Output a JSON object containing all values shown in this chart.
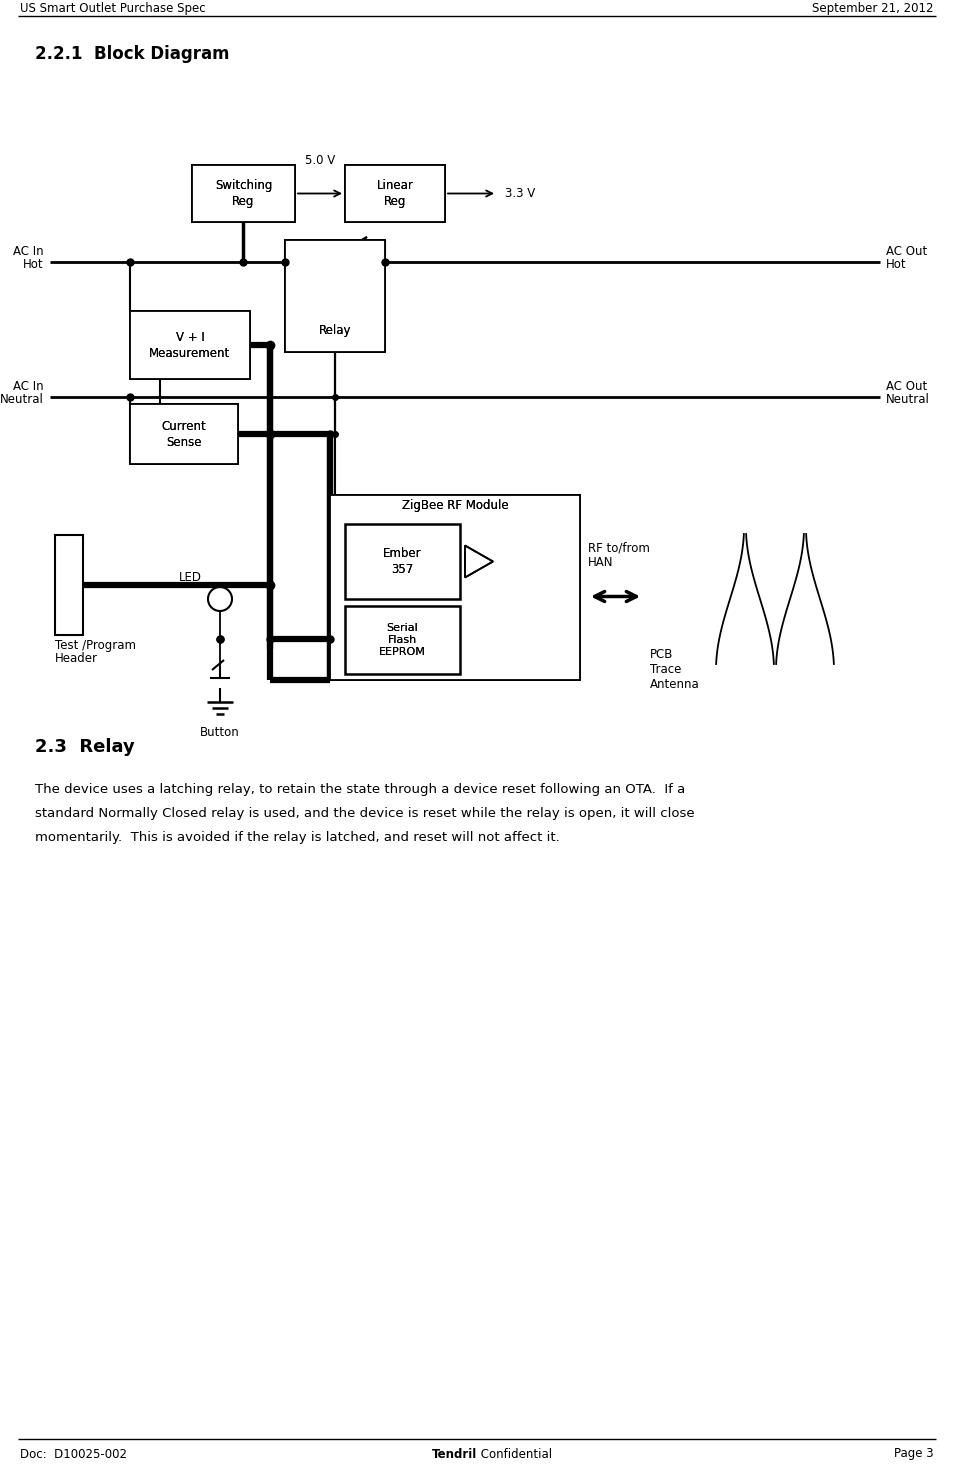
{
  "page_title_left": "US Smart Outlet Purchase Spec",
  "page_title_right": "September 21, 2012",
  "footer_left": "Doc:  D10025-002",
  "footer_center_bold": "Tendril",
  "footer_center_normal": " Confidential",
  "footer_right": "Page 3",
  "section_title": "2.2.1  Block Diagram",
  "section2_title": "2.3  Relay",
  "section2_body": "The device uses a latching relay, to retain the state through a device reset following an OTA.  If a\nstandard Normally Closed relay is used, and the device is reset while the relay is open, it will close\nmomentarily.  This is avoided if the relay is latched, and reset will not affect it.",
  "bg_color": "#ffffff"
}
